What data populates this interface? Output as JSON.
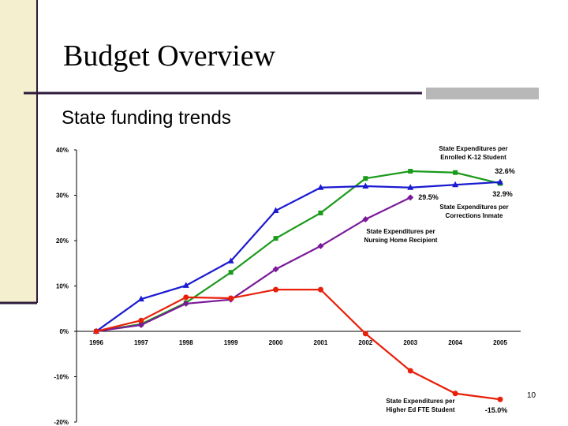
{
  "slide": {
    "title": "Budget Overview",
    "subtitle": "State funding trends",
    "page_number": "10"
  },
  "chart_data": {
    "type": "line",
    "categories": [
      "1996",
      "1997",
      "1998",
      "1999",
      "2000",
      "2001",
      "2002",
      "2003",
      "2004",
      "2005"
    ],
    "ylim": [
      -20,
      40
    ],
    "yticks": [
      {
        "value": -20,
        "label": "-20%"
      },
      {
        "value": -10,
        "label": "-10%"
      },
      {
        "value": 0,
        "label": "0%"
      },
      {
        "value": 10,
        "label": "10%"
      },
      {
        "value": 20,
        "label": "20%"
      },
      {
        "value": 30,
        "label": "30%"
      },
      {
        "value": 40,
        "label": "40%"
      }
    ],
    "series": [
      {
        "color": "#1a9a1a",
        "marker": "square",
        "values": [
          0,
          1.6,
          6.3,
          13,
          20.5,
          26.1,
          33.7,
          35.3,
          35,
          32.6
        ]
      },
      {
        "color": "#1a1ad0",
        "marker": "triangle",
        "values": [
          0,
          7.1,
          10.1,
          15.5,
          26.6,
          31.7,
          32,
          31.7,
          32.3,
          32.9
        ]
      },
      {
        "color": "#7a1a9a",
        "marker": "diamond",
        "values": [
          0,
          1.4,
          6.1,
          7,
          13.7,
          18.8,
          24.7,
          29.5,
          null,
          null
        ]
      },
      {
        "color": "#e8200a",
        "marker": "circle",
        "values": [
          0,
          2.4,
          7.5,
          7.3,
          9.2,
          9.2,
          -0.5,
          -8.7,
          -13.7,
          -15.0
        ]
      }
    ],
    "annotations": [
      {
        "lines": [
          "State Expenditures per",
          "Enrolled K-12 Student"
        ]
      },
      {
        "lines": [
          "32.6%"
        ]
      },
      {
        "lines": [
          "29.5%"
        ]
      },
      {
        "lines": [
          "32.9%"
        ]
      },
      {
        "lines": [
          "State Expenditures per",
          "Corrections Inmate"
        ]
      },
      {
        "lines": [
          "State Expenditures per",
          "Nursing Home Recipient"
        ]
      },
      {
        "lines": [
          "State Expenditures per",
          "Higher Ed FTE Student"
        ]
      },
      {
        "lines": [
          "-15.0%"
        ]
      }
    ]
  }
}
